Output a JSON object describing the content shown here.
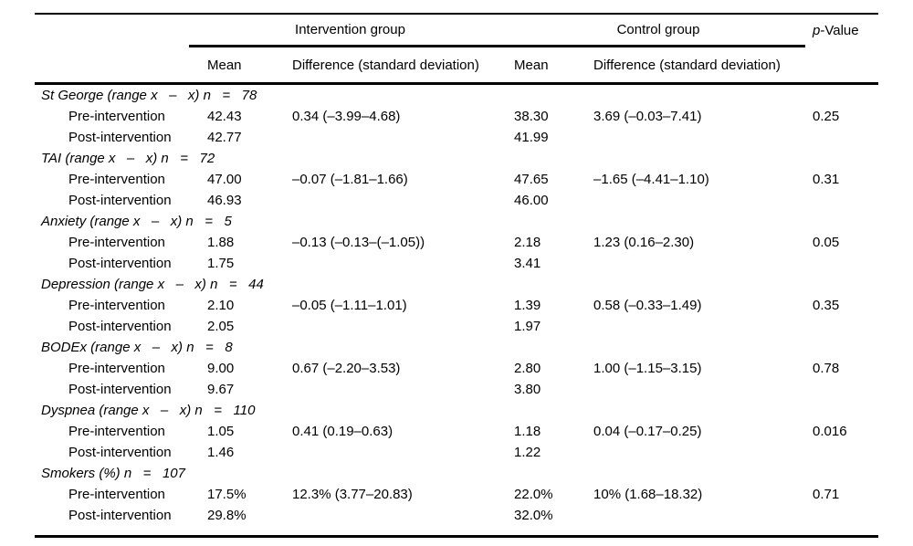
{
  "table": {
    "header": {
      "intervention_label": "Intervention group",
      "control_label": "Control group",
      "p_italic": "p",
      "p_rest": "-Value",
      "mean_label_1": "Mean",
      "diff_label_1": "Difference (standard deviation)",
      "mean_label_2": "Mean",
      "diff_label_2": "Difference (standard deviation)"
    },
    "groups": [
      {
        "title": "St George (range x   –   x) n   =   78",
        "rows": [
          {
            "label": "Pre-intervention",
            "int_mean": "42.43",
            "int_diff": "0.34 (–3.99–4.68)",
            "ctl_mean": "38.30",
            "ctl_diff": "3.69 (–0.03–7.41)",
            "p": "0.25"
          },
          {
            "label": "Post-intervention",
            "int_mean": "42.77",
            "int_diff": "",
            "ctl_mean": "41.99",
            "ctl_diff": "",
            "p": ""
          }
        ]
      },
      {
        "title": "TAI (range x   –   x) n   =   72",
        "rows": [
          {
            "label": "Pre-intervention",
            "int_mean": "47.00",
            "int_diff": "–0.07 (–1.81–1.66)",
            "ctl_mean": "47.65",
            "ctl_diff": "–1.65 (–4.41–1.10)",
            "p": "0.31"
          },
          {
            "label": "Post-intervention",
            "int_mean": "46.93",
            "int_diff": "",
            "ctl_mean": "46.00",
            "ctl_diff": "",
            "p": ""
          }
        ]
      },
      {
        "title": "Anxiety (range x   –   x) n   =   5",
        "rows": [
          {
            "label": "Pre-intervention",
            "int_mean": "1.88",
            "int_diff": "–0.13 (–0.13–(–1.05))",
            "ctl_mean": "2.18",
            "ctl_diff": "1.23 (0.16–2.30)",
            "p": "0.05"
          },
          {
            "label": "Post-intervention",
            "int_mean": "1.75",
            "int_diff": "",
            "ctl_mean": "3.41",
            "ctl_diff": "",
            "p": ""
          }
        ]
      },
      {
        "title": "Depression (range x   –   x) n   =   44",
        "rows": [
          {
            "label": "Pre-intervention",
            "int_mean": "2.10",
            "int_diff": "–0.05 (–1.11–1.01)",
            "ctl_mean": "1.39",
            "ctl_diff": "0.58 (–0.33–1.49)",
            "p": "0.35"
          },
          {
            "label": "Post-intervention",
            "int_mean": "2.05",
            "int_diff": "",
            "ctl_mean": "1.97",
            "ctl_diff": "",
            "p": ""
          }
        ]
      },
      {
        "title": "BODEx (range x   –   x) n   =   8",
        "rows": [
          {
            "label": "Pre-intervention",
            "int_mean": "9.00",
            "int_diff": "0.67 (–2.20–3.53)",
            "ctl_mean": "2.80",
            "ctl_diff": "1.00 (–1.15–3.15)",
            "p": "0.78"
          },
          {
            "label": "Post-intervention",
            "int_mean": "9.67",
            "int_diff": "",
            "ctl_mean": "3.80",
            "ctl_diff": "",
            "p": ""
          }
        ]
      },
      {
        "title": "Dyspnea (range x   –   x) n   =   110",
        "rows": [
          {
            "label": "Pre-intervention",
            "int_mean": "1.05",
            "int_diff": "0.41 (0.19–0.63)",
            "ctl_mean": "1.18",
            "ctl_diff": "0.04 (–0.17–0.25)",
            "p": "0.016"
          },
          {
            "label": "Post-intervention",
            "int_mean": "1.46",
            "int_diff": "",
            "ctl_mean": "1.22",
            "ctl_diff": "",
            "p": ""
          }
        ]
      },
      {
        "title": "Smokers (%) n   =   107",
        "rows": [
          {
            "label": "Pre-intervention",
            "int_mean": "17.5%",
            "int_diff": "12.3% (3.77–20.83)",
            "ctl_mean": "22.0%",
            "ctl_diff": "10% (1.68–18.32)",
            "p": "0.71"
          },
          {
            "label": "Post-intervention",
            "int_mean": "29.8%",
            "int_diff": "",
            "ctl_mean": "32.0%",
            "ctl_diff": "",
            "p": ""
          }
        ]
      }
    ]
  }
}
